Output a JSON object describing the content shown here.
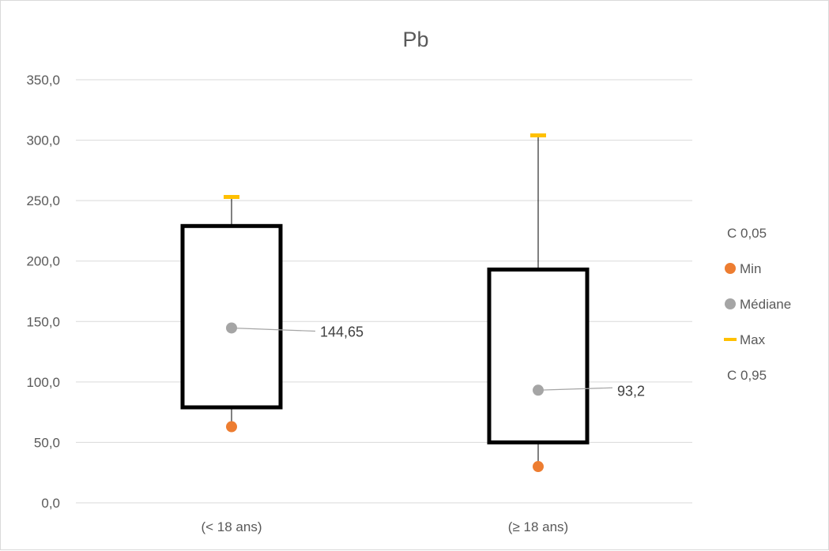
{
  "chart_data": {
    "type": "box",
    "title": "Pb",
    "xlabel": "",
    "ylabel": "",
    "ylim": [
      0,
      350
    ],
    "ytick_labels": [
      "0,0",
      "50,0",
      "100,0",
      "150,0",
      "200,0",
      "250,0",
      "300,0",
      "350,0"
    ],
    "yticks": [
      0,
      50,
      100,
      150,
      200,
      250,
      300,
      350
    ],
    "grid": true,
    "legend_position": "right",
    "categories": [
      "(< 18 ans)",
      "(≥ 18 ans)"
    ],
    "series": [
      {
        "name": "C 0,05",
        "values": [
          79,
          50
        ]
      },
      {
        "name": "Min",
        "values": [
          63,
          30
        ]
      },
      {
        "name": "Médiane",
        "values": [
          144.65,
          93.2
        ]
      },
      {
        "name": "Max",
        "values": [
          253,
          304
        ]
      },
      {
        "name": "C 0,95",
        "values": [
          229,
          193
        ]
      }
    ],
    "data_labels": [
      "144,65",
      "93,2"
    ],
    "colors": {
      "min": "#ed7d31",
      "median": "#a5a5a5",
      "max": "#ffc000",
      "box": "#000000",
      "grid": "#d9d9d9",
      "text": "#595959"
    }
  }
}
